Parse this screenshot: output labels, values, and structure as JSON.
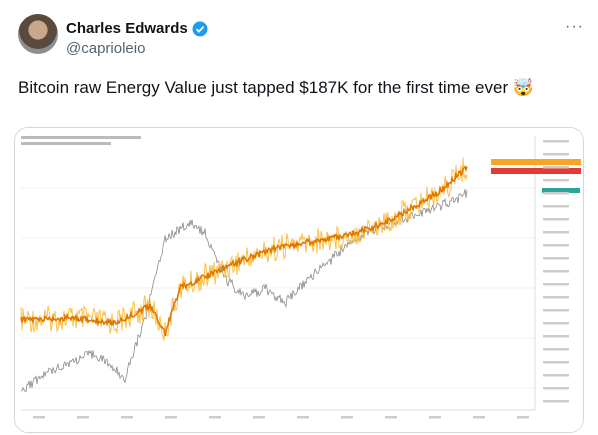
{
  "author": {
    "name": "Charles Edwards",
    "handle": "@caprioleio"
  },
  "tweet": {
    "text": "Bitcoin raw Energy Value just tapped $187K for the first time ever 🤯"
  }
}
